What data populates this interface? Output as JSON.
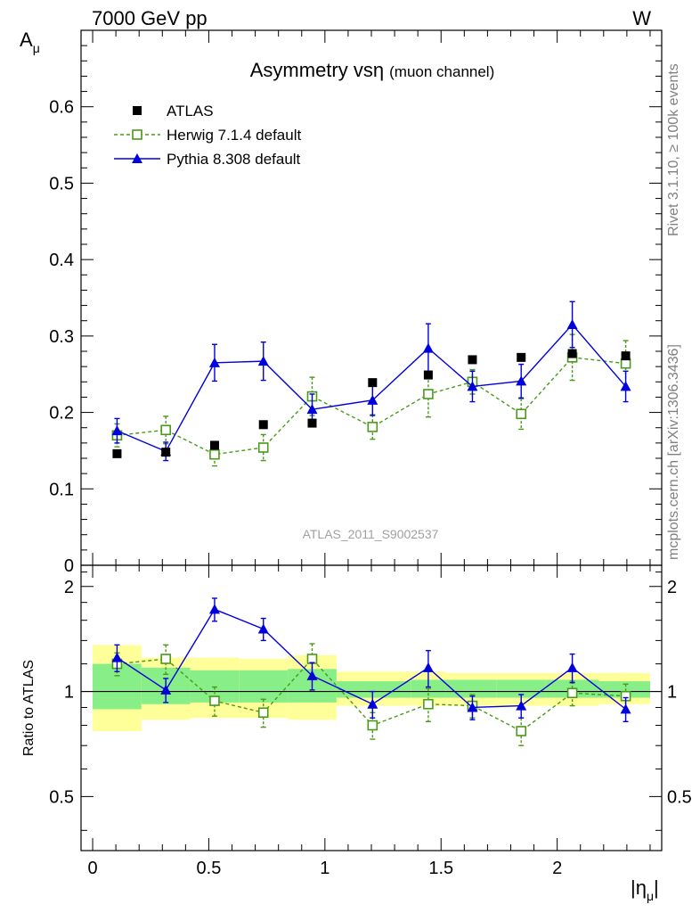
{
  "header": {
    "beam": "7000 GeV pp",
    "process": "W",
    "side_info_top": "Rivet 3.1.10, ≥ 100k events",
    "side_info_bottom": "mcplots.cern.ch [arXiv:1306.3436]",
    "analysis_id": "ATLAS_2011_S9002537"
  },
  "chart_data": [
    {
      "type": "scatter",
      "panel": "main",
      "title": "Asymmetry vs",
      "title_symbol": "η",
      "subtitle": "(muon channel)",
      "ylabel": "A",
      "ylabel_sub": "μ",
      "xlim": [
        -0.05,
        2.45
      ],
      "ylim": [
        0,
        0.7
      ],
      "yticks": [
        0,
        0.1,
        0.2,
        0.3,
        0.4,
        0.5,
        0.6
      ],
      "ytick_labels": [
        "0",
        "0.1",
        "0.2",
        "0.3",
        "0.4",
        "0.5",
        "0.6"
      ],
      "legend_position": "top-left",
      "series": [
        {
          "name": "ATLAS",
          "color": "#000000",
          "marker": "filled-square",
          "x": [
            0.105,
            0.315,
            0.525,
            0.735,
            0.945,
            1.205,
            1.445,
            1.635,
            1.845,
            2.065,
            2.295
          ],
          "y": [
            0.146,
            0.148,
            0.157,
            0.184,
            0.186,
            0.239,
            0.249,
            0.269,
            0.272,
            0.277,
            0.274
          ]
        },
        {
          "name": "Herwig 7.1.4 default",
          "color": "#4a9a1a",
          "marker": "open-square",
          "line": "dashed",
          "x": [
            0.105,
            0.315,
            0.525,
            0.735,
            0.945,
            1.205,
            1.445,
            1.635,
            1.845,
            2.065,
            2.295
          ],
          "y": [
            0.17,
            0.177,
            0.145,
            0.154,
            0.221,
            0.181,
            0.224,
            0.24,
            0.198,
            0.272,
            0.264
          ],
          "err": [
            0.015,
            0.018,
            0.015,
            0.017,
            0.025,
            0.016,
            0.03,
            0.016,
            0.02,
            0.03,
            0.03
          ]
        },
        {
          "name": "Pythia 8.308 default",
          "color": "#0000dd",
          "marker": "filled-triangle",
          "line": "solid",
          "x": [
            0.105,
            0.315,
            0.525,
            0.735,
            0.945,
            1.205,
            1.445,
            1.635,
            1.845,
            2.065,
            2.295
          ],
          "y": [
            0.176,
            0.149,
            0.265,
            0.267,
            0.204,
            0.216,
            0.284,
            0.234,
            0.241,
            0.315,
            0.234
          ],
          "err": [
            0.016,
            0.012,
            0.024,
            0.025,
            0.02,
            0.02,
            0.032,
            0.02,
            0.022,
            0.03,
            0.02
          ]
        }
      ]
    },
    {
      "type": "scatter",
      "panel": "ratio",
      "ylabel": "Ratio to ATLAS",
      "xlabel": "|η",
      "xlabel_sub": "μ",
      "xlabel_suffix": "|",
      "xlim": [
        -0.05,
        2.45
      ],
      "xticks": [
        0,
        0.5,
        1,
        1.5,
        2
      ],
      "xtick_labels": [
        "0",
        "0.5",
        "1",
        "1.5",
        "2"
      ],
      "ylim": [
        0.35,
        2.3
      ],
      "ylog": true,
      "yticks": [
        0.5,
        1,
        2
      ],
      "ytick_labels": [
        "0.5",
        "1",
        "2"
      ],
      "reference_line": 1,
      "uncertainty_bands": {
        "bin_edges": [
          0,
          0.21,
          0.42,
          0.63,
          0.84,
          1.05,
          1.37,
          1.52,
          1.74,
          1.95,
          2.18,
          2.4
        ],
        "stat": [
          [
            0.89,
            1.2
          ],
          [
            0.92,
            1.17
          ],
          [
            0.93,
            1.15
          ],
          [
            0.93,
            1.15
          ],
          [
            0.93,
            1.16
          ],
          [
            0.96,
            1.07
          ],
          [
            0.96,
            1.08
          ],
          [
            0.96,
            1.08
          ],
          [
            0.96,
            1.08
          ],
          [
            0.96,
            1.08
          ],
          [
            0.96,
            1.07
          ]
        ],
        "total": [
          [
            0.77,
            1.36
          ],
          [
            0.83,
            1.25
          ],
          [
            0.84,
            1.25
          ],
          [
            0.84,
            1.24
          ],
          [
            0.83,
            1.27
          ],
          [
            0.91,
            1.14
          ],
          [
            0.91,
            1.14
          ],
          [
            0.91,
            1.13
          ],
          [
            0.91,
            1.13
          ],
          [
            0.91,
            1.13
          ],
          [
            0.92,
            1.13
          ]
        ],
        "stat_color": "#88ee88",
        "total_color": "#ffff99"
      },
      "series": [
        {
          "name": "Herwig 7.1.4 default",
          "color": "#4a9a1a",
          "marker": "open-square",
          "line": "dashed",
          "x": [
            0.105,
            0.315,
            0.525,
            0.735,
            0.945,
            1.205,
            1.445,
            1.635,
            1.845,
            2.065,
            2.295
          ],
          "y": [
            1.2,
            1.24,
            0.94,
            0.87,
            1.24,
            0.8,
            0.92,
            0.91,
            0.77,
            0.99,
            0.97
          ],
          "err": [
            0.09,
            0.12,
            0.09,
            0.08,
            0.13,
            0.07,
            0.1,
            0.07,
            0.07,
            0.08,
            0.08
          ]
        },
        {
          "name": "Pythia 8.308 default",
          "color": "#0000dd",
          "marker": "filled-triangle",
          "line": "solid",
          "x": [
            0.105,
            0.315,
            0.525,
            0.735,
            0.945,
            1.205,
            1.445,
            1.635,
            1.845,
            2.065,
            2.295
          ],
          "y": [
            1.25,
            1.01,
            1.72,
            1.51,
            1.11,
            0.92,
            1.17,
            0.9,
            0.91,
            1.17,
            0.89
          ],
          "err": [
            0.11,
            0.08,
            0.13,
            0.11,
            0.1,
            0.08,
            0.14,
            0.07,
            0.07,
            0.11,
            0.07
          ]
        }
      ]
    }
  ]
}
